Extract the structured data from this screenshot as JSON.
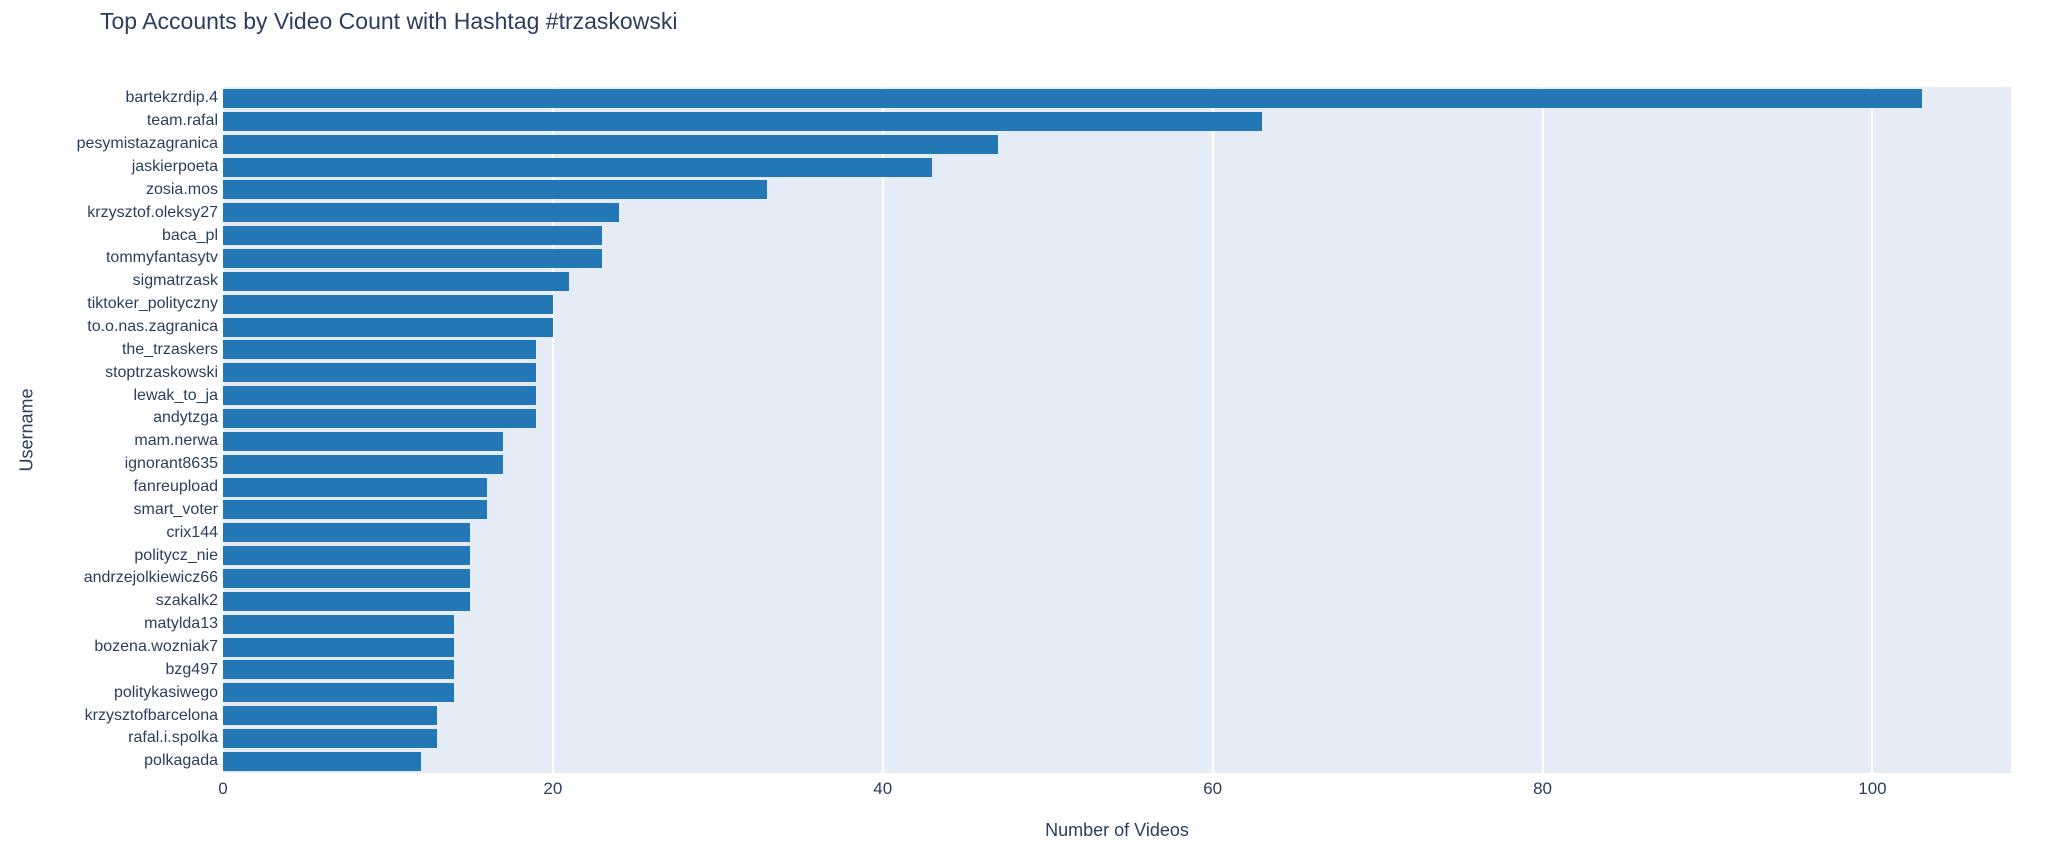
{
  "page": {
    "title": "Top Accounts by Video Count with Hashtag #trzaskowski"
  },
  "chart_data": {
    "type": "bar",
    "orientation": "horizontal",
    "title": "Top Accounts by Video Count with Hashtag #trzaskowski",
    "xlabel": "Number of Videos",
    "ylabel": "Username",
    "categories": [
      "bartekzrdip.4",
      "team.rafal",
      "pesymistazagranica",
      "jaskierpoeta",
      "zosia.mos",
      "krzysztof.oleksy27",
      "baca_pl",
      "tommyfantasytv",
      "sigmatrzask",
      "tiktoker_polityczny",
      "to.o.nas.zagranica",
      "the_trzaskers",
      "stoptrzaskowski",
      "lewak_to_ja",
      "andytzga",
      "mam.nerwa",
      "ignorant8635",
      "fanreupload",
      "smart_voter",
      "crix144",
      "politycz_nie",
      "andrzejolkiewicz66",
      "szakalk2",
      "matylda13",
      "bozena.wozniak7",
      "bzg497",
      "politykasiwego",
      "krzysztofbarcelona",
      "rafal.i.spolka",
      "polkagada"
    ],
    "values": [
      103,
      63,
      47,
      43,
      33,
      24,
      23,
      23,
      21,
      20,
      20,
      19,
      19,
      19,
      19,
      17,
      17,
      16,
      16,
      15,
      15,
      15,
      15,
      14,
      14,
      14,
      14,
      13,
      13,
      12
    ],
    "xlim": [
      0,
      108.4
    ],
    "xticks": [
      0,
      20,
      40,
      60,
      80,
      100
    ],
    "grid": true,
    "legend": false,
    "colors": {
      "bar": "#2277b4",
      "plot_bg": "#e5ecf6",
      "grid": "#ffffff",
      "text": "#2a3f5f",
      "page_bg": "#ffffff"
    }
  }
}
